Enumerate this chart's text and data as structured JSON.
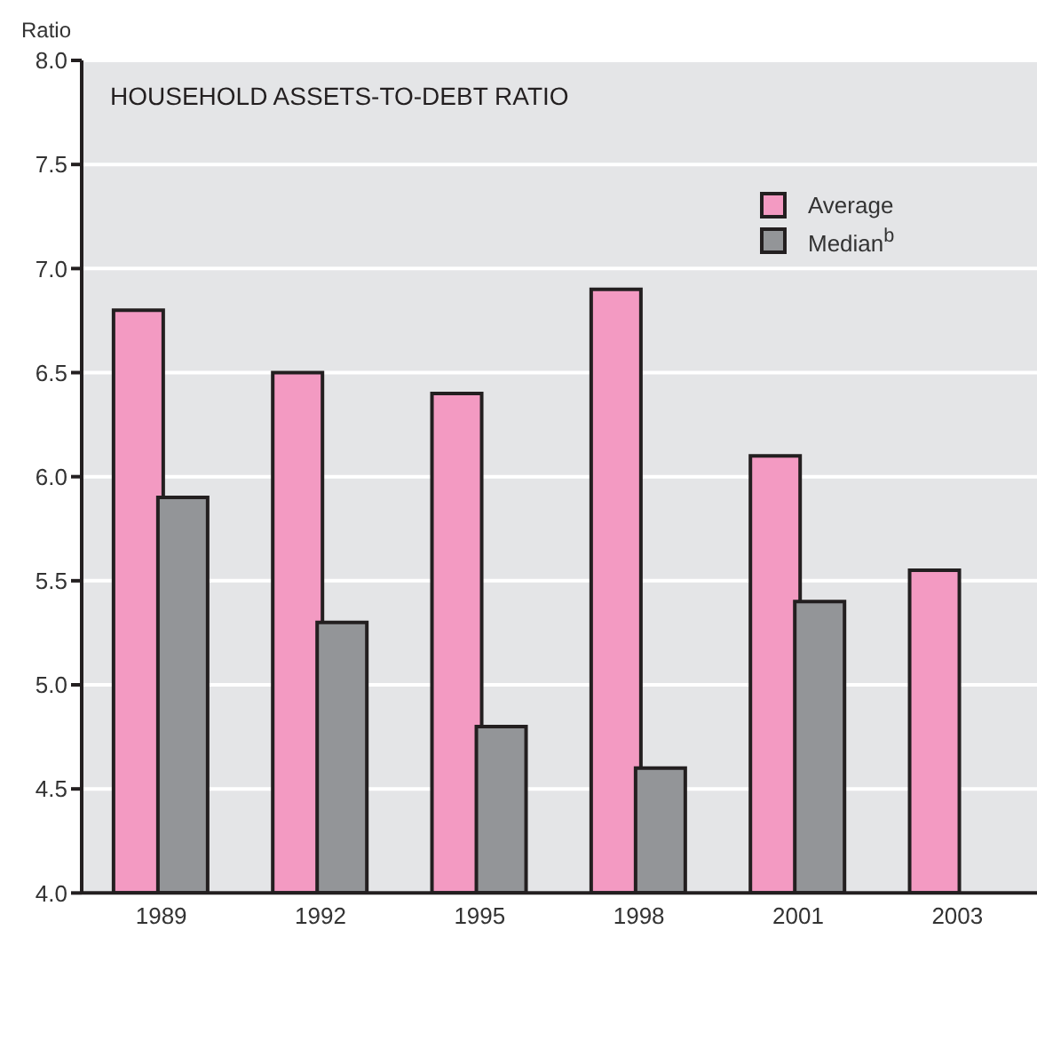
{
  "chart_data": {
    "type": "bar",
    "title": "HOUSEHOLD ASSETS-TO-DEBT RATIO",
    "ylabel": "Ratio",
    "categories": [
      "1989",
      "1992",
      "1995",
      "1998",
      "2001",
      "2003"
    ],
    "series": [
      {
        "name": "Average",
        "color": "#f39ac2",
        "values": [
          6.8,
          6.5,
          6.4,
          6.9,
          6.1,
          5.55
        ]
      },
      {
        "name": "Median$^{b}$",
        "color": "#939598",
        "values": [
          5.9,
          5.3,
          4.8,
          4.6,
          5.4,
          null
        ]
      }
    ],
    "ylim": [
      4.0,
      8.0
    ],
    "yticks": [
      {
        "value": 4,
        "label": "4.0"
      },
      4.5,
      {
        "value": 5,
        "label": "5.0"
      },
      5.5,
      {
        "value": 6,
        "label": "6.0"
      },
      6.5,
      {
        "value": 7,
        "label": "7.0"
      },
      7.5,
      {
        "value": 8,
        "label": "8.0"
      }
    ],
    "grid": "y",
    "legend": "top right"
  }
}
